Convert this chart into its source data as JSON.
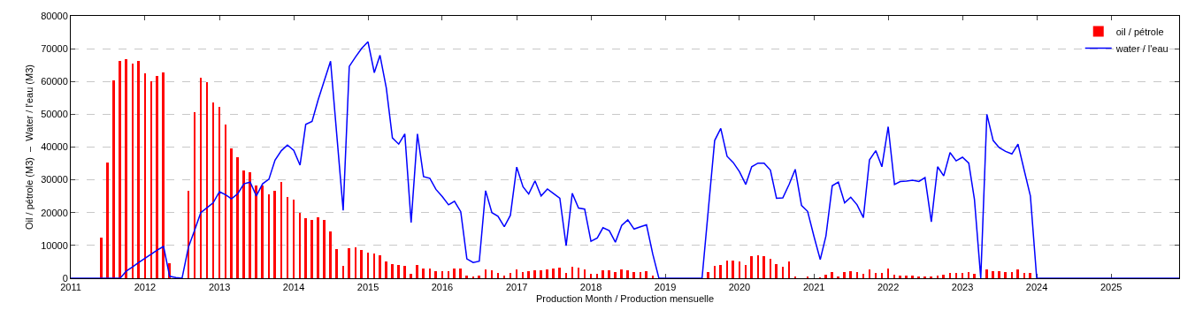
{
  "chart_data": {
    "type": "bar",
    "xlabel": "Production Month / Production mensuelle",
    "ylabel": "Oil / pétrole (M3)  –  Water / l'eau (M3)",
    "x": [
      "2011-01",
      "2011-02",
      "2011-03",
      "2011-04",
      "2011-05",
      "2011-06",
      "2011-07",
      "2011-08",
      "2011-09",
      "2011-10",
      "2011-11",
      "2011-12",
      "2012-01",
      "2012-02",
      "2012-03",
      "2012-04",
      "2012-05",
      "2012-06",
      "2012-07",
      "2012-08",
      "2012-09",
      "2012-10",
      "2012-11",
      "2012-12",
      "2013-01",
      "2013-02",
      "2013-03",
      "2013-04",
      "2013-05",
      "2013-06",
      "2013-07",
      "2013-08",
      "2013-09",
      "2013-10",
      "2013-11",
      "2013-12",
      "2014-01",
      "2014-02",
      "2014-03",
      "2014-04",
      "2014-05",
      "2014-06",
      "2014-07",
      "2014-08",
      "2014-09",
      "2014-10",
      "2014-11",
      "2014-12",
      "2015-01",
      "2015-02",
      "2015-03",
      "2015-04",
      "2015-05",
      "2015-06",
      "2015-07",
      "2015-08",
      "2015-09",
      "2015-10",
      "2015-11",
      "2015-12",
      "2016-01",
      "2016-02",
      "2016-03",
      "2016-04",
      "2016-05",
      "2016-06",
      "2016-07",
      "2016-08",
      "2016-09",
      "2016-10",
      "2016-11",
      "2016-12",
      "2017-01",
      "2017-02",
      "2017-03",
      "2017-04",
      "2017-05",
      "2017-06",
      "2017-07",
      "2017-08",
      "2017-09",
      "2017-10",
      "2017-11",
      "2017-12",
      "2018-01",
      "2018-02",
      "2018-03",
      "2018-04",
      "2018-05",
      "2018-06",
      "2018-07",
      "2018-08",
      "2018-09",
      "2018-10",
      "2018-11",
      "2018-12",
      "2019-01",
      "2019-02",
      "2019-03",
      "2019-04",
      "2019-05",
      "2019-06",
      "2019-07",
      "2019-08",
      "2019-09",
      "2019-10",
      "2019-11",
      "2019-12",
      "2020-01",
      "2020-02",
      "2020-03",
      "2020-04",
      "2020-05",
      "2020-06",
      "2020-07",
      "2020-08",
      "2020-09",
      "2020-10",
      "2020-11",
      "2020-12",
      "2021-01",
      "2021-02",
      "2021-03",
      "2021-04",
      "2021-05",
      "2021-06",
      "2021-07",
      "2021-08",
      "2021-09",
      "2021-10",
      "2021-11",
      "2021-12",
      "2022-01",
      "2022-02",
      "2022-03",
      "2022-04",
      "2022-05",
      "2022-06",
      "2022-07",
      "2022-08",
      "2022-09",
      "2022-10",
      "2022-11",
      "2022-12",
      "2023-01",
      "2023-02",
      "2023-03",
      "2023-04",
      "2023-05",
      "2023-06",
      "2023-07",
      "2023-08",
      "2023-09",
      "2023-10",
      "2023-11",
      "2023-12",
      "2024-01",
      "2024-02",
      "2024-03",
      "2024-04",
      "2024-05",
      "2024-06",
      "2024-07",
      "2024-08",
      "2024-09",
      "2024-10",
      "2024-11",
      "2024-12",
      "2025-01",
      "2025-02",
      "2025-03",
      "2025-04",
      "2025-05",
      "2025-06",
      "2025-07",
      "2025-08",
      "2025-09",
      "2025-10",
      "2025-11",
      "2025-12"
    ],
    "series": [
      {
        "name": "oil / pétrole",
        "color": "#ff0000",
        "values": [
          0,
          0,
          0,
          0,
          0,
          12400,
          35400,
          60300,
          66200,
          66700,
          65400,
          66200,
          62400,
          60200,
          61700,
          62800,
          4700,
          0,
          0,
          26800,
          50700,
          61100,
          59900,
          53700,
          52200,
          47000,
          39700,
          36900,
          32900,
          32300,
          28200,
          28200,
          25600,
          26700,
          29300,
          24800,
          23900,
          19800,
          18400,
          17900,
          18700,
          17700,
          14400,
          9000,
          3800,
          9100,
          9500,
          8700,
          7800,
          7500,
          7100,
          5100,
          4400,
          4100,
          3700,
          1400,
          4000,
          2900,
          2900,
          2200,
          2100,
          2200,
          2900,
          2900,
          700,
          500,
          800,
          2800,
          2300,
          1600,
          700,
          1500,
          2600,
          2000,
          2100,
          2300,
          2500,
          2800,
          3000,
          3300,
          1500,
          3600,
          3200,
          2600,
          1300,
          1300,
          2400,
          2400,
          2000,
          2600,
          2400,
          2000,
          2000,
          2200,
          700,
          0,
          0,
          0,
          0,
          0,
          0,
          0,
          0,
          1800,
          3700,
          4100,
          5300,
          5500,
          5100,
          4100,
          6700,
          6900,
          6700,
          5800,
          4200,
          3600,
          5200,
          400,
          0,
          300,
          0,
          200,
          1100,
          2000,
          600,
          1800,
          2200,
          1800,
          1300,
          2800,
          1600,
          1700,
          3000,
          1000,
          700,
          800,
          700,
          600,
          400,
          300,
          900,
          1100,
          1600,
          1600,
          1600,
          1800,
          1300,
          0,
          2600,
          2200,
          2200,
          2000,
          2000,
          2700,
          1600,
          1500,
          0,
          0,
          0,
          0,
          0,
          0,
          0,
          0,
          0,
          0,
          0,
          0,
          0,
          0,
          0,
          0,
          0,
          0,
          0,
          0,
          0,
          0,
          0,
          0
        ]
      },
      {
        "name": "water / l'eau",
        "type": "line",
        "color": "#0000ff",
        "values": [
          0,
          0,
          0,
          0,
          0,
          0,
          0,
          0,
          0,
          2200,
          3500,
          4800,
          6100,
          7400,
          8600,
          9700,
          600,
          200,
          0,
          9400,
          14700,
          20000,
          21500,
          23000,
          26400,
          25400,
          24200,
          25800,
          28800,
          29300,
          25100,
          28800,
          30200,
          36000,
          38900,
          40600,
          39000,
          34500,
          46900,
          47800,
          54400,
          60400,
          66200,
          43400,
          20700,
          64600,
          67500,
          70100,
          72100,
          62700,
          68000,
          58000,
          42800,
          40900,
          44000,
          17000,
          44000,
          31000,
          30500,
          27100,
          24900,
          22400,
          23500,
          20300,
          5900,
          4800,
          5200,
          26700,
          20000,
          18900,
          15700,
          19200,
          33900,
          27900,
          25700,
          29700,
          25100,
          27200,
          25800,
          24400,
          9900,
          25900,
          21400,
          21100,
          11300,
          12300,
          15400,
          14500,
          11000,
          16100,
          17800,
          15000,
          15700,
          16300,
          7300,
          0,
          0,
          0,
          0,
          0,
          0,
          0,
          0,
          21000,
          42000,
          45700,
          37200,
          35300,
          32500,
          28600,
          34000,
          35100,
          35100,
          33000,
          24400,
          24500,
          28600,
          33200,
          22200,
          20400,
          12800,
          5700,
          12900,
          28200,
          29300,
          23000,
          24700,
          22400,
          18500,
          36100,
          38900,
          34000,
          46200,
          28600,
          29500,
          29600,
          29900,
          29500,
          30700,
          17200,
          34000,
          31200,
          38300,
          35800,
          36900,
          35100,
          24000,
          0,
          50000,
          42000,
          39800,
          38700,
          37900,
          40900,
          32800,
          25100,
          0,
          0,
          0,
          0,
          0,
          0,
          0,
          0,
          0,
          0,
          0,
          0,
          0,
          0,
          0,
          0,
          0,
          0,
          0,
          0,
          0,
          0,
          0,
          0
        ]
      }
    ],
    "xlim": [
      "2011-01",
      "2025-12"
    ],
    "xticks": [
      "2011",
      "2012",
      "2013",
      "2014",
      "2015",
      "2016",
      "2017",
      "2018",
      "2019",
      "2020",
      "2021",
      "2022",
      "2023",
      "2024",
      "2025"
    ],
    "ylim": [
      0,
      80000
    ],
    "yticks": [
      0,
      10000,
      20000,
      30000,
      40000,
      50000,
      60000,
      70000,
      80000
    ],
    "grid": "y",
    "legend": "top right"
  }
}
